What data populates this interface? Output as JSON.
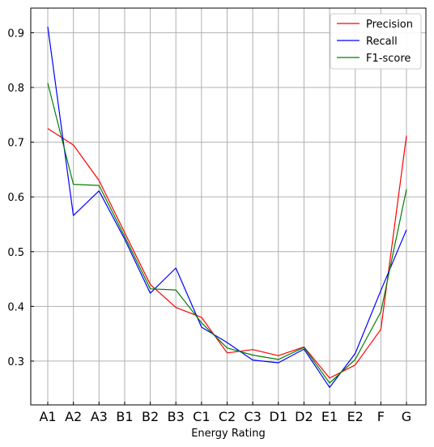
{
  "chart_data": {
    "type": "line",
    "title": "",
    "xlabel": "Energy Rating",
    "ylabel": "",
    "categories": [
      "A1",
      "A2",
      "A3",
      "B1",
      "B2",
      "B3",
      "C1",
      "C2",
      "C3",
      "D1",
      "D2",
      "E1",
      "E2",
      "F",
      "G"
    ],
    "ylim": [
      0.22,
      0.945
    ],
    "yticks": [
      0.3,
      0.4,
      0.5,
      0.6,
      0.7,
      0.8,
      0.9
    ],
    "ytick_labels": [
      "0.3",
      "0.4",
      "0.5",
      "0.6",
      "0.7",
      "0.8",
      "0.9"
    ],
    "grid": true,
    "legend_position": "top-right",
    "series": [
      {
        "name": "Precision",
        "color": "#ff0000",
        "values": [
          0.725,
          0.695,
          0.63,
          0.535,
          0.44,
          0.398,
          0.38,
          0.315,
          0.321,
          0.31,
          0.326,
          0.269,
          0.293,
          0.358,
          0.712
        ]
      },
      {
        "name": "Recall",
        "color": "#0000ff",
        "values": [
          0.911,
          0.566,
          0.611,
          0.523,
          0.424,
          0.47,
          0.362,
          0.334,
          0.302,
          0.297,
          0.322,
          0.252,
          0.314,
          0.429,
          0.54
        ]
      },
      {
        "name": "F1-score",
        "color": "#008000",
        "values": [
          0.808,
          0.623,
          0.621,
          0.528,
          0.432,
          0.43,
          0.37,
          0.324,
          0.311,
          0.303,
          0.325,
          0.26,
          0.303,
          0.39,
          0.614
        ]
      }
    ]
  }
}
